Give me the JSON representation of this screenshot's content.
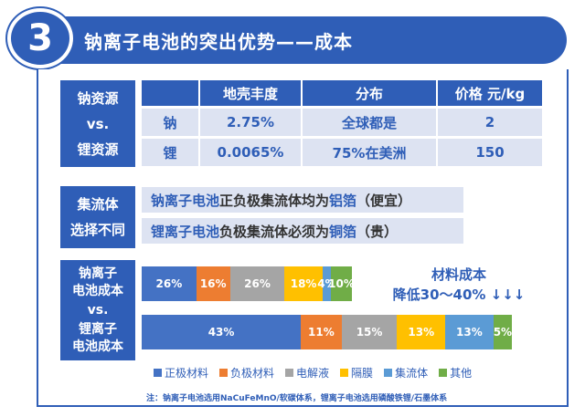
{
  "header": {
    "number": "3",
    "title": "钠离子电池的突出优势——成本"
  },
  "resources": {
    "label_line1": "钠资源",
    "label_line2": "vs.",
    "label_line3": "锂资源",
    "headers": [
      "地壳丰度",
      "分布",
      "价格 元/kg"
    ],
    "rows": [
      {
        "element": "钠",
        "abundance": "2.75%",
        "distribution": "全球都是",
        "price": "2"
      },
      {
        "element": "锂",
        "abundance": "0.0065%",
        "distribution": "75%在美洲",
        "price": "150"
      }
    ]
  },
  "collector": {
    "label_line1": "集流体",
    "label_line2": "选择不同",
    "line1": {
      "subject": "钠离子电池",
      "text": "正负极集流体均为",
      "material": "铝箔",
      "note": "（便宜）"
    },
    "line2": {
      "subject": "锂离子电池",
      "text": "负极集流体必须为",
      "material": "铜箔",
      "note": "（贵）"
    }
  },
  "cost": {
    "label_line1": "钠离子",
    "label_line2": "电池成本",
    "label_line3": "vs.",
    "label_line4": "锂离子",
    "label_line5": "电池成本",
    "note_line1": "材料成本",
    "note_line2": "降低30～40% ↓↓↓"
  },
  "chart_data": {
    "type": "bar",
    "stacked": true,
    "orientation": "horizontal",
    "categories": [
      "钠离子电池成本",
      "锂离子电池成本"
    ],
    "series": [
      {
        "name": "正极材料",
        "color": "#4472c4",
        "values": [
          26,
          43
        ],
        "labels": [
          "26%",
          "43%"
        ]
      },
      {
        "name": "负极材料",
        "color": "#ed7d31",
        "values": [
          16,
          11
        ],
        "labels": [
          "16%",
          "11%"
        ]
      },
      {
        "name": "电解液",
        "color": "#a5a5a5",
        "values": [
          26,
          15
        ],
        "labels": [
          "26%",
          "15%"
        ]
      },
      {
        "name": "隔膜",
        "color": "#ffc000",
        "values": [
          18,
          13
        ],
        "labels": [
          "18%",
          "13%"
        ]
      },
      {
        "name": "集流体",
        "color": "#5b9bd5",
        "values": [
          4,
          13
        ],
        "labels": [
          "4%",
          "13%"
        ]
      },
      {
        "name": "其他",
        "color": "#70ad47",
        "values": [
          10,
          5
        ],
        "labels": [
          "10%",
          "5%"
        ]
      }
    ]
  },
  "footnote": "注：钠离子电池选用NaCuFeMnO/软碳体系，锂离子电池选用磷酸铁锂/石墨体系"
}
